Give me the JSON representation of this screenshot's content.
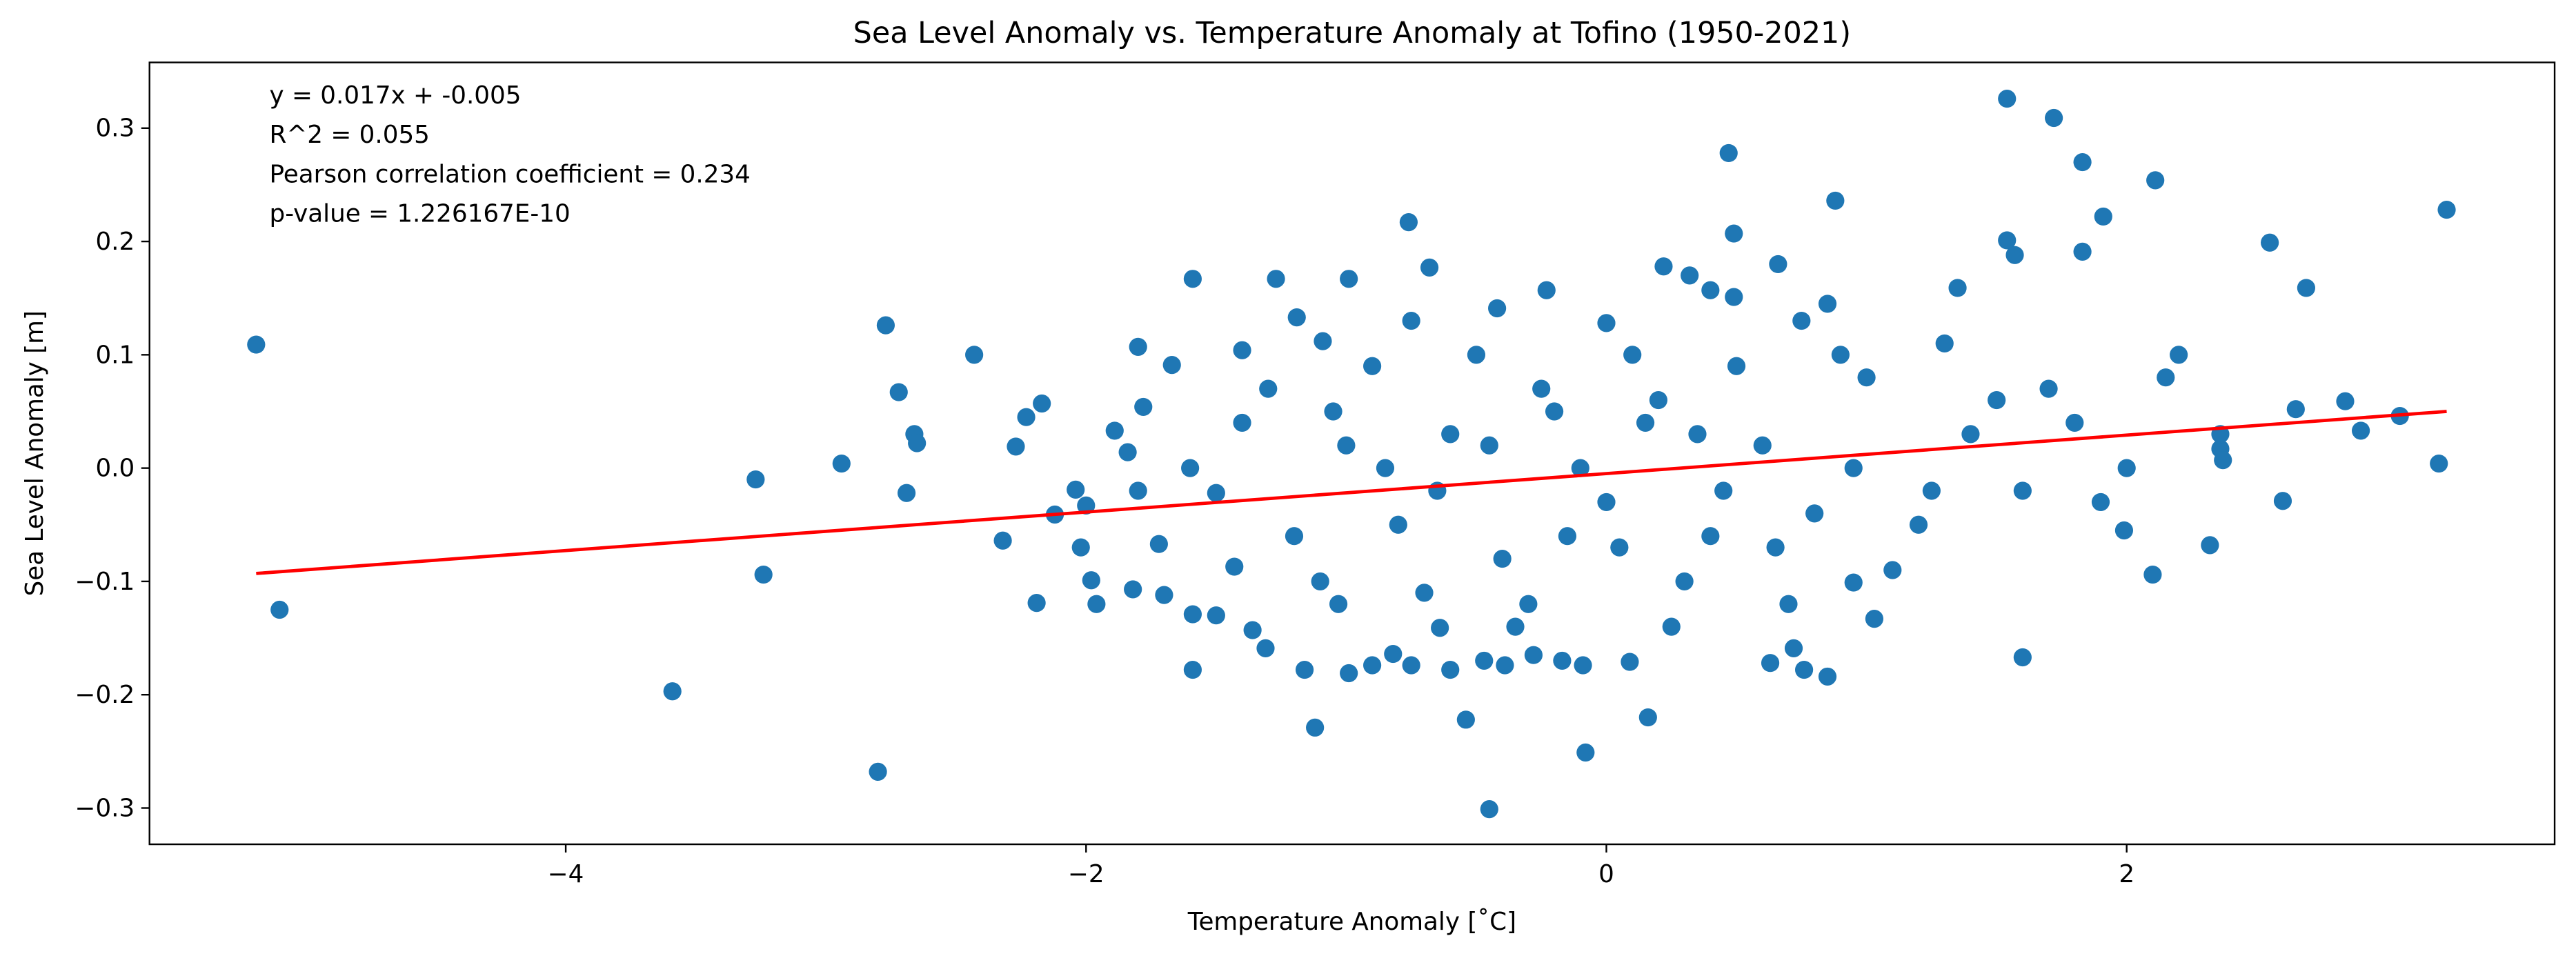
{
  "chart_data": {
    "type": "scatter",
    "title": "Sea Level Anomaly vs. Temperature Anomaly at Tofino (1950-2021)",
    "x_label": "Temperature Anomaly [˚C]",
    "y_label": "Sea Level Anomaly [m]",
    "annotations": [
      "y = 0.017x + -0.005",
      "R^2 = 0.055",
      "Pearson correlation coefficient = 0.234",
      "p-value = 1.226167E-10"
    ],
    "xlim": [
      -5.6,
      3.645
    ],
    "ylim": [
      -0.332,
      0.358
    ],
    "xticks": [
      {
        "value": -4,
        "label": "−4"
      },
      {
        "value": -2,
        "label": "−2"
      },
      0,
      2
    ],
    "yticks": [
      {
        "value": -0.3,
        "label": "−0.3"
      },
      {
        "value": -0.2,
        "label": "−0.2"
      },
      {
        "value": -0.1,
        "label": "−0.1"
      },
      {
        "value": 0,
        "label": "0.0"
      },
      0.1,
      0.2,
      0.3
    ],
    "series": [
      {
        "type": "scatter",
        "color": "#1f77b4",
        "x": [
          -5.19,
          -5.1,
          -3.59,
          -3.27,
          -3.24,
          -2.94,
          -2.8,
          -2.77,
          -2.72,
          -2.69,
          -2.66,
          -2.65,
          -2.43,
          -2.32,
          -2.27,
          -2.23,
          -2.19,
          -2.17,
          -2.12,
          -2.04,
          -2.02,
          -2.0,
          -1.98,
          -1.96,
          -1.89,
          -1.84,
          -1.82,
          -1.8,
          -1.78,
          -1.72,
          -1.7,
          -1.67,
          -1.59,
          -1.59,
          -1.59,
          -1.5,
          -1.5,
          -1.43,
          -1.4,
          -1.36,
          -1.31,
          -1.27,
          -1.19,
          -1.16,
          -1.12,
          -1.09,
          -1.03,
          -0.99,
          -0.99,
          -0.9,
          -0.82,
          -0.76,
          -0.75,
          -0.68,
          -0.64,
          -0.6,
          -0.54,
          -0.47,
          -0.45,
          -0.42,
          -0.39,
          -0.28,
          -0.23,
          -0.17,
          -0.09,
          -0.08,
          0.0,
          0.09,
          0.16,
          0.22,
          0.32,
          0.4,
          0.47,
          0.49,
          0.49,
          0.63,
          0.66,
          0.72,
          0.76,
          0.85,
          0.85,
          0.88,
          0.95,
          1.03,
          1.35,
          1.54,
          1.54,
          1.57,
          1.6,
          1.72,
          1.83,
          1.83,
          1.91,
          1.99,
          2.11,
          2.1,
          2.32,
          2.36,
          2.55,
          2.6,
          2.65,
          2.69,
          2.84,
          2.9,
          3.05,
          3.2,
          3.23,
          2.36,
          2.37,
          -1.0,
          -0.8,
          -0.6,
          -0.4,
          -0.2,
          0.0,
          0.2,
          0.4,
          0.6,
          0.8,
          1.0,
          1.2,
          1.4,
          -1.2,
          -1.4,
          -0.9,
          -0.5,
          0.1,
          0.5,
          0.9,
          1.3,
          -0.7,
          -0.3,
          0.3,
          0.7,
          1.1,
          -1.1,
          -0.1,
          0.05,
          -0.15,
          0.35,
          -0.45,
          1.6,
          1.8,
          2.0,
          1.7,
          -1.6,
          -1.8,
          0.15,
          -0.25,
          0.65,
          0.95,
          -0.85,
          1.5,
          1.9,
          -1.3,
          2.2,
          2.15,
          0.45,
          -0.65,
          0.25,
          -0.35,
          0.75,
          -0.75,
          1.25,
          -1.05
        ],
        "values": [
          0.109,
          -0.125,
          -0.197,
          -0.01,
          -0.094,
          0.004,
          -0.268,
          0.126,
          0.067,
          -0.022,
          0.03,
          0.022,
          0.1,
          -0.064,
          0.019,
          0.045,
          -0.119,
          0.057,
          -0.041,
          -0.019,
          -0.07,
          -0.033,
          -0.099,
          -0.12,
          0.033,
          0.014,
          -0.107,
          0.107,
          0.054,
          -0.067,
          -0.112,
          0.091,
          -0.178,
          0.167,
          -0.129,
          -0.13,
          -0.022,
          -0.087,
          0.104,
          -0.143,
          -0.159,
          0.167,
          0.133,
          -0.178,
          -0.229,
          0.112,
          -0.12,
          -0.181,
          0.167,
          -0.174,
          -0.164,
          0.217,
          -0.174,
          0.177,
          -0.141,
          -0.178,
          -0.222,
          -0.17,
          -0.301,
          0.141,
          -0.174,
          -0.165,
          0.157,
          -0.17,
          -0.174,
          -0.251,
          0.128,
          -0.171,
          -0.22,
          0.178,
          0.17,
          0.157,
          0.278,
          0.207,
          0.151,
          -0.172,
          0.18,
          -0.159,
          -0.178,
          0.145,
          -0.184,
          0.236,
          -0.101,
          -0.133,
          0.159,
          0.326,
          0.201,
          0.188,
          -0.167,
          0.309,
          0.27,
          0.191,
          0.222,
          -0.055,
          0.254,
          -0.094,
          -0.068,
          0.017,
          0.199,
          -0.029,
          0.052,
          0.159,
          0.059,
          0.033,
          0.046,
          0.004,
          0.228,
          0.03,
          0.007,
          0.02,
          -0.05,
          0.03,
          -0.08,
          0.05,
          -0.03,
          0.06,
          -0.06,
          0.02,
          -0.04,
          0.08,
          -0.05,
          0.03,
          -0.06,
          0.04,
          0.09,
          0.1,
          0.1,
          0.09,
          0.1,
          0.11,
          -0.11,
          -0.12,
          -0.1,
          -0.12,
          -0.09,
          -0.1,
          0.0,
          -0.07,
          -0.06,
          0.03,
          0.02,
          -0.02,
          0.04,
          0.0,
          0.07,
          0.0,
          -0.02,
          0.04,
          0.07,
          -0.07,
          0.0,
          0.0,
          0.06,
          -0.03,
          0.07,
          0.1,
          0.08,
          -0.02,
          -0.02,
          -0.14,
          -0.14,
          0.13,
          0.13,
          -0.02,
          0.05
        ]
      },
      {
        "type": "line",
        "color": "#ff0000",
        "x": [
          -5.19,
          3.23
        ],
        "values": [
          -0.093,
          0.05
        ]
      }
    ]
  }
}
